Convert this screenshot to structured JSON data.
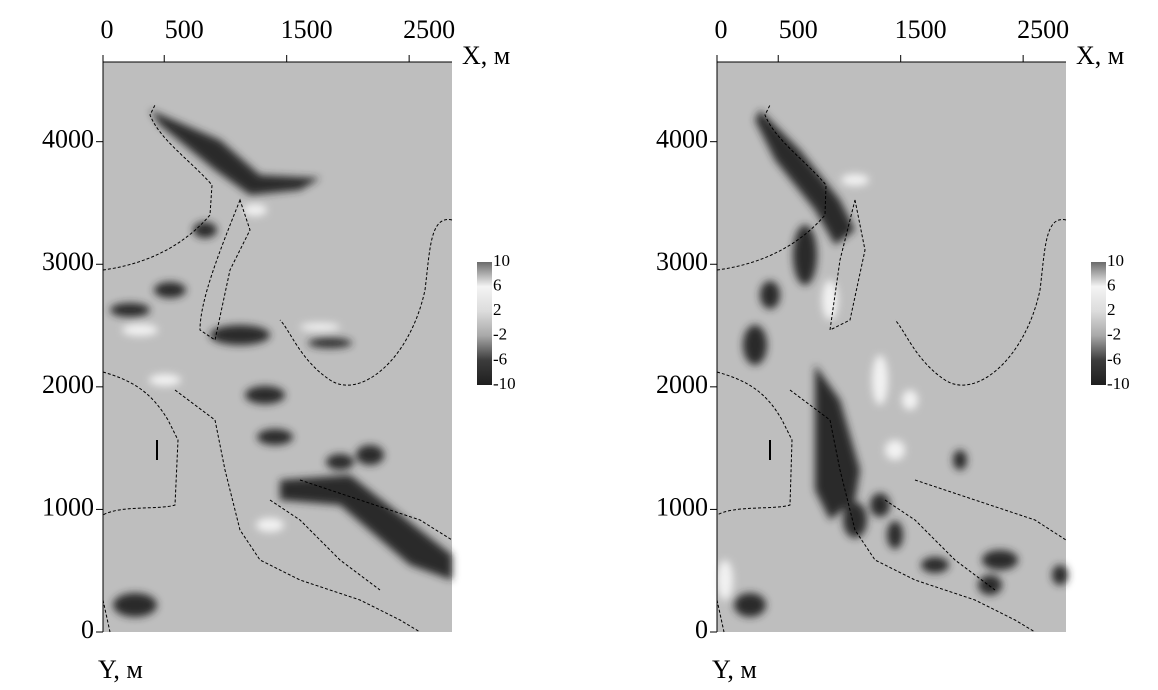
{
  "chart_data": [
    {
      "type": "heatmap",
      "x_label": "X, м",
      "y_label": "Y, м",
      "xlim": [
        0,
        2850
      ],
      "xticks": [
        0,
        500,
        1500,
        2500
      ],
      "ylim": [
        0,
        4650
      ],
      "yticks": [
        0,
        1000,
        2000,
        3000,
        4000
      ],
      "clim": [
        -10,
        10
      ],
      "cticks": [
        10,
        6,
        2,
        -2,
        -6,
        -10
      ]
    },
    {
      "type": "heatmap",
      "x_label": "X, м",
      "y_label": "Y, м",
      "xlim": [
        0,
        2850
      ],
      "xticks": [
        0,
        500,
        1500,
        2500
      ],
      "ylim": [
        0,
        4650
      ],
      "yticks": [
        0,
        1000,
        2000,
        3000,
        4000
      ],
      "clim": [
        -10,
        10
      ],
      "cticks": [
        10,
        6,
        2,
        -2,
        -6,
        -10
      ]
    }
  ]
}
